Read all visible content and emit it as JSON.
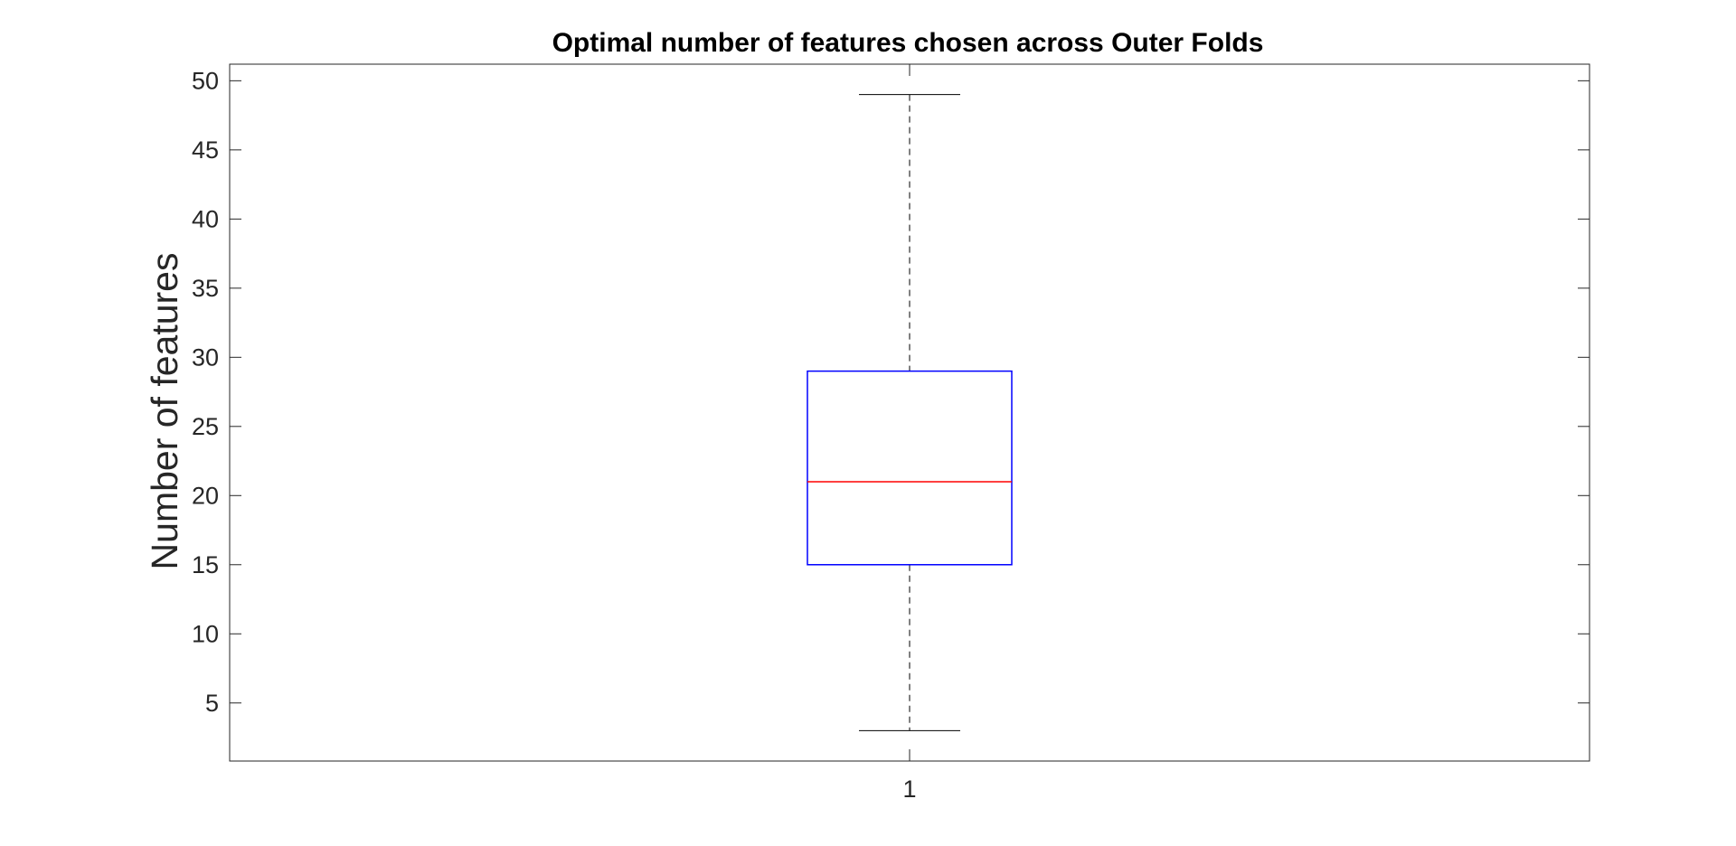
{
  "chart_data": {
    "type": "box",
    "title": "Optimal number of features chosen across Outer Folds",
    "xlabel": "",
    "ylabel": "Number of features",
    "categories": [
      "1"
    ],
    "boxes": [
      {
        "category": "1",
        "whisker_low": 3,
        "q1": 15,
        "median": 21,
        "q3": 29,
        "whisker_high": 49
      }
    ],
    "ylim": [
      0.8,
      51.2
    ],
    "yticks": [
      5,
      10,
      15,
      20,
      25,
      30,
      35,
      40,
      45,
      50
    ],
    "ytick_labels": [
      "5",
      "10",
      "15",
      "20",
      "25",
      "30",
      "35",
      "40",
      "45",
      "50"
    ],
    "grid": false,
    "colors": {
      "box": "#0000ff",
      "median": "#ff0000",
      "whisker": "#000000",
      "axes": "#262626"
    }
  }
}
